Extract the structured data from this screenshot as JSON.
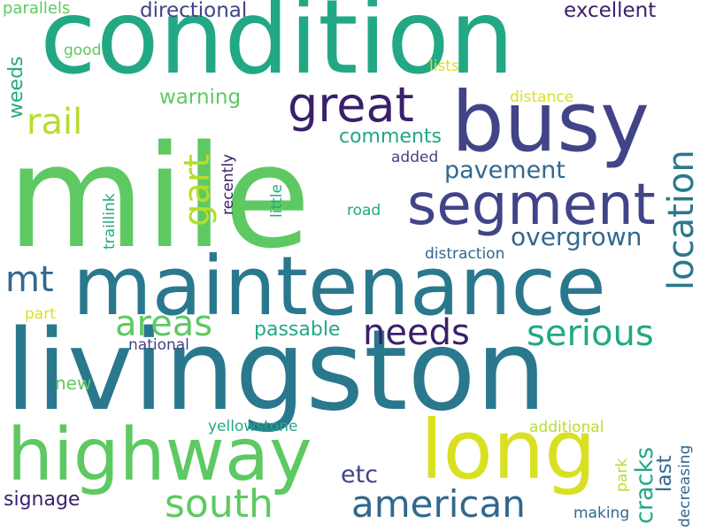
{
  "word_cloud": {
    "colors": {
      "teal": "#2a788e",
      "green": "#5ec962",
      "mint": "#22a884",
      "purple": "#3b1f6b",
      "indigo": "#414487",
      "yellow": "#d9e021",
      "lime": "#b5de2b",
      "blue": "#31688e",
      "background": "#ffffff"
    },
    "words": {
      "mile": "mile",
      "livingston": "livingston",
      "condition": "condition",
      "maintenance": "maintenance",
      "busy": "busy",
      "highway": "highway",
      "long": "long",
      "segment": "segment",
      "great": "great",
      "location": "location",
      "american": "american",
      "south": "south",
      "needs": "needs",
      "serious": "serious",
      "rail": "rail",
      "areas": "areas",
      "gart": "gart",
      "mt": "mt",
      "overgrown": "overgrown",
      "pavement": "pavement",
      "etc": "etc",
      "cracks": "cracks",
      "directional": "directional",
      "excellent": "excellent",
      "warning": "warning",
      "last": "last",
      "comments": "comments",
      "passable": "passable",
      "signage": "signage",
      "weeds": "weeds",
      "new": "new",
      "parallels": "parallels",
      "good": "good",
      "lists": "lists",
      "distance": "distance",
      "added": "added",
      "road": "road",
      "distraction": "distraction",
      "part": "part",
      "national": "national",
      "yellowstone": "yellowstone",
      "additional": "additional",
      "making": "making",
      "park": "park",
      "traillink": "traillink",
      "recently": "recently",
      "little": "little",
      "decreasing": "decreasing"
    }
  }
}
